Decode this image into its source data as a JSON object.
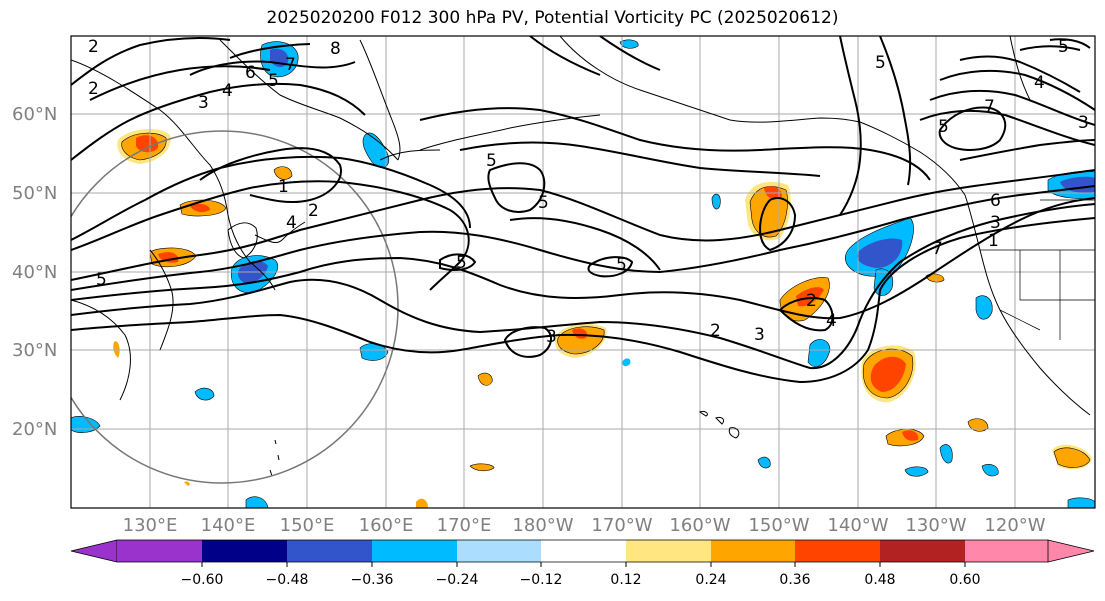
{
  "title": "2025020200 F012 300 hPa PV, Potential Vorticity PC (2025020612)",
  "lat_labels": [
    "60°N",
    "50°N",
    "40°N",
    "30°N",
    "20°N"
  ],
  "lon_labels": [
    "130°E",
    "140°E",
    "150°E",
    "160°E",
    "170°E",
    "180°W",
    "170°W",
    "160°W",
    "150°W",
    "140°W",
    "130°W",
    "120°W"
  ],
  "contour_labels": [
    "2",
    "2",
    "8",
    "7",
    "6",
    "5",
    "4",
    "3",
    "1",
    "2",
    "4",
    "5",
    "5",
    "5",
    "5",
    "5",
    "3",
    "2",
    "3",
    "2",
    "4",
    "5",
    "5",
    "5",
    "4",
    "3",
    "7",
    "6",
    "3",
    "1",
    "7"
  ],
  "colorbar": {
    "tick_labels": [
      "−0.60",
      "−0.48",
      "−0.36",
      "−0.24",
      "−0.12",
      "0.12",
      "0.24",
      "0.36",
      "0.48",
      "0.60"
    ],
    "colors": [
      "#9933cc",
      "#000088",
      "#3355cc",
      "#00bbff",
      "#aaddff",
      "#ffffff",
      "#ffe680",
      "#ffa500",
      "#ff4400",
      "#b22222",
      "#ff88aa"
    ]
  },
  "colors": {
    "neg_strong": "#3355cc",
    "neg_mid": "#00bbff",
    "neg_weak": "#aaddff",
    "pos_weak": "#ffe680",
    "pos_mid": "#ffa500",
    "pos_strong": "#ff4400"
  }
}
